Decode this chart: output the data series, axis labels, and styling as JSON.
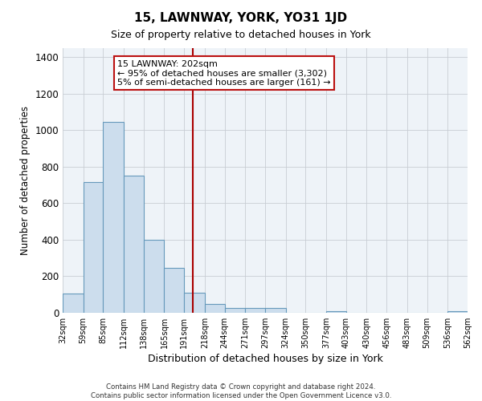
{
  "title": "15, LAWNWAY, YORK, YO31 1JD",
  "subtitle": "Size of property relative to detached houses in York",
  "xlabel": "Distribution of detached houses by size in York",
  "ylabel": "Number of detached properties",
  "bar_color": "#ccdded",
  "bar_edge_color": "#6699bb",
  "background_color": "#eef3f8",
  "grid_color": "#c8cdd4",
  "vline_value": 202,
  "vline_color": "#aa0000",
  "annotation_line1": "15 LAWNWAY: 202sqm",
  "annotation_line2": "← 95% of detached houses are smaller (3,302)",
  "annotation_line3": "5% of semi-detached houses are larger (161) →",
  "bin_edges": [
    32,
    59,
    85,
    112,
    138,
    165,
    191,
    218,
    244,
    271,
    297,
    324,
    350,
    377,
    403,
    430,
    456,
    483,
    509,
    536,
    562
  ],
  "bar_heights": [
    107,
    718,
    1047,
    750,
    400,
    245,
    110,
    50,
    28,
    25,
    25,
    0,
    0,
    10,
    0,
    0,
    0,
    0,
    0,
    10
  ],
  "ylim": [
    0,
    1450
  ],
  "yticks": [
    0,
    200,
    400,
    600,
    800,
    1000,
    1200,
    1400
  ],
  "footer_line1": "Contains HM Land Registry data © Crown copyright and database right 2024.",
  "footer_line2": "Contains public sector information licensed under the Open Government Licence v3.0."
}
